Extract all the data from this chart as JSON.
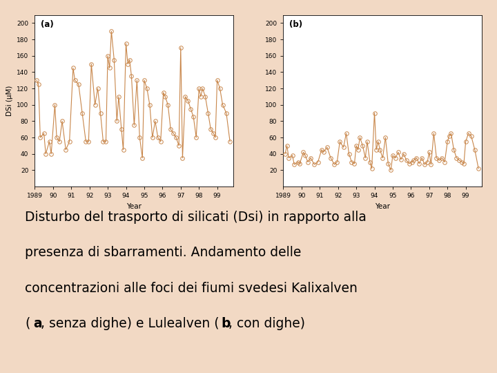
{
  "background_color": "#f2d9c4",
  "panel_bg": "#ffffff",
  "line_color": "#c8864a",
  "marker_color": "#c8864a",
  "label_a": "(a)",
  "label_b": "(b)",
  "ylabel": "DSi (μM)",
  "xlabel": "Year",
  "ylim": [
    0,
    210
  ],
  "yticks": [
    20,
    40,
    60,
    80,
    100,
    120,
    140,
    160,
    180,
    200
  ],
  "xtick_labels": [
    "1989",
    "90",
    "91",
    "92",
    "93",
    "94",
    "95",
    "96",
    "97",
    "98",
    "99"
  ],
  "x_a": [
    1989.1,
    1989.2,
    1989.3,
    1989.5,
    1989.6,
    1989.8,
    1989.9,
    1990.1,
    1990.2,
    1990.35,
    1990.5,
    1990.7,
    1990.9,
    1991.1,
    1991.2,
    1991.4,
    1991.6,
    1991.8,
    1991.95,
    1992.1,
    1992.3,
    1992.45,
    1992.6,
    1992.75,
    1992.9,
    1993.0,
    1993.1,
    1993.2,
    1993.35,
    1993.5,
    1993.6,
    1993.75,
    1993.85,
    1994.0,
    1994.1,
    1994.2,
    1994.3,
    1994.45,
    1994.6,
    1994.75,
    1994.9,
    1995.0,
    1995.15,
    1995.3,
    1995.45,
    1995.6,
    1995.75,
    1995.9,
    1996.05,
    1996.15,
    1996.3,
    1996.45,
    1996.6,
    1996.75,
    1996.9,
    1997.0,
    1997.1,
    1997.25,
    1997.4,
    1997.55,
    1997.7,
    1997.85,
    1998.0,
    1998.1,
    1998.2,
    1998.35,
    1998.5,
    1998.65,
    1998.8,
    1998.9,
    1999.0,
    1999.15,
    1999.3,
    1999.5,
    1999.7
  ],
  "y_a": [
    130,
    125,
    60,
    65,
    40,
    55,
    40,
    100,
    60,
    55,
    80,
    45,
    55,
    145,
    130,
    125,
    90,
    55,
    55,
    150,
    100,
    120,
    90,
    55,
    55,
    160,
    145,
    190,
    155,
    80,
    110,
    70,
    45,
    175,
    150,
    155,
    135,
    75,
    130,
    60,
    35,
    130,
    120,
    100,
    60,
    80,
    60,
    55,
    115,
    110,
    100,
    70,
    65,
    60,
    50,
    170,
    35,
    110,
    105,
    95,
    85,
    60,
    120,
    110,
    120,
    110,
    90,
    70,
    65,
    60,
    130,
    120,
    100,
    90,
    55
  ],
  "x_b": [
    1989.1,
    1989.2,
    1989.3,
    1989.5,
    1989.6,
    1989.8,
    1989.9,
    1990.1,
    1990.2,
    1990.35,
    1990.5,
    1990.7,
    1990.9,
    1991.1,
    1991.2,
    1991.4,
    1991.6,
    1991.8,
    1991.95,
    1992.1,
    1992.3,
    1992.45,
    1992.6,
    1992.75,
    1992.9,
    1993.0,
    1993.1,
    1993.2,
    1993.35,
    1993.5,
    1993.6,
    1993.75,
    1993.85,
    1994.0,
    1994.1,
    1994.2,
    1994.3,
    1994.45,
    1994.6,
    1994.75,
    1994.9,
    1995.0,
    1995.15,
    1995.3,
    1995.45,
    1995.6,
    1995.75,
    1995.9,
    1996.05,
    1996.15,
    1996.3,
    1996.45,
    1996.6,
    1996.75,
    1996.9,
    1997.0,
    1997.1,
    1997.25,
    1997.4,
    1997.55,
    1997.7,
    1997.85,
    1998.0,
    1998.1,
    1998.2,
    1998.35,
    1998.5,
    1998.65,
    1998.8,
    1998.9,
    1999.0,
    1999.15,
    1999.3,
    1999.5,
    1999.7
  ],
  "y_b": [
    40,
    50,
    35,
    38,
    27,
    30,
    28,
    42,
    38,
    30,
    35,
    27,
    30,
    45,
    42,
    48,
    35,
    27,
    30,
    55,
    48,
    65,
    40,
    30,
    28,
    50,
    45,
    60,
    50,
    35,
    55,
    30,
    22,
    90,
    45,
    55,
    45,
    35,
    60,
    28,
    20,
    38,
    35,
    42,
    33,
    40,
    32,
    28,
    30,
    32,
    35,
    28,
    35,
    27,
    30,
    42,
    27,
    65,
    35,
    32,
    35,
    30,
    55,
    62,
    65,
    45,
    35,
    32,
    30,
    28,
    55,
    65,
    62,
    45,
    22
  ]
}
